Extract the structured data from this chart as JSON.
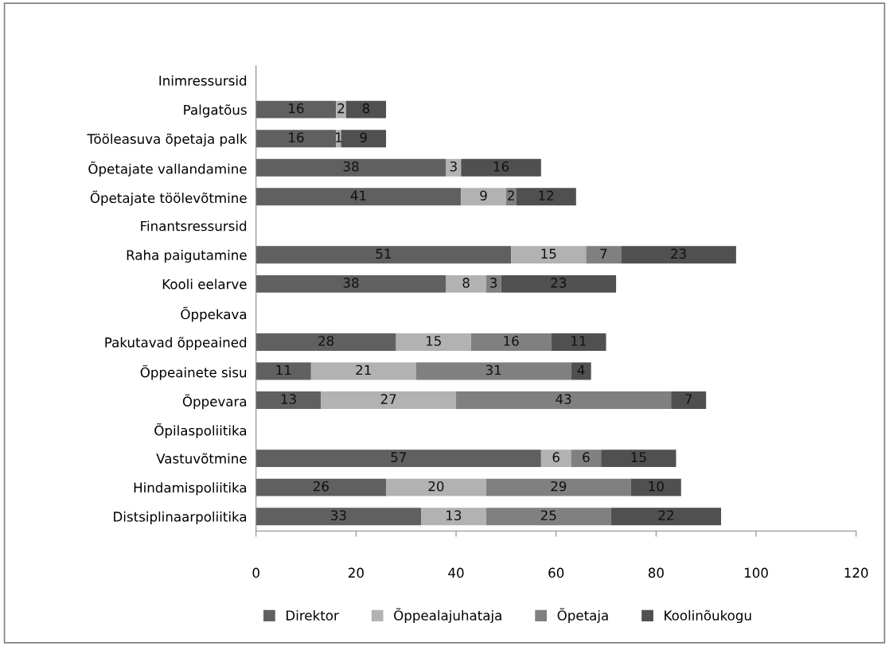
{
  "chart_data": {
    "type": "bar",
    "orientation": "horizontal",
    "stacked": true,
    "data_labels": true,
    "grid": false,
    "legend": "bottom",
    "categories": [
      "Inimressursid",
      "Palgatõus",
      "Tööleasuva õpetaja palk",
      "Õpetajate vallandamine",
      "Õpetajate töölevõtmine",
      "Finantsressursid",
      "Raha paigutamine",
      "Kooli eelarve",
      "Õppekava",
      "Pakutavad õppeained",
      "Õppeainete sisu",
      "Õppevara",
      "Õpilaspoliitika",
      "Vastuvõtmine",
      "Hindamispoliitika",
      "Distsiplinaarpoliitika"
    ],
    "series": [
      {
        "name": "Direktor",
        "color": "#606060",
        "values": [
          null,
          16,
          16,
          38,
          41,
          null,
          51,
          38,
          null,
          28,
          11,
          13,
          null,
          57,
          26,
          33
        ]
      },
      {
        "name": "Õppealajuhataja",
        "color": "#b2b2b2",
        "values": [
          null,
          2,
          1,
          3,
          9,
          null,
          15,
          8,
          null,
          15,
          21,
          27,
          null,
          6,
          20,
          13
        ]
      },
      {
        "name": "Õpetaja",
        "color": "#808080",
        "values": [
          null,
          null,
          null,
          null,
          2,
          null,
          7,
          3,
          null,
          16,
          31,
          43,
          null,
          6,
          29,
          25
        ]
      },
      {
        "name": "Koolinõukogu",
        "color": "#505050",
        "values": [
          null,
          8,
          9,
          16,
          12,
          null,
          23,
          23,
          null,
          11,
          4,
          7,
          null,
          15,
          10,
          22
        ]
      }
    ],
    "xlim": [
      0,
      120
    ],
    "xticks": [
      0,
      20,
      40,
      60,
      80,
      100,
      120
    ]
  }
}
